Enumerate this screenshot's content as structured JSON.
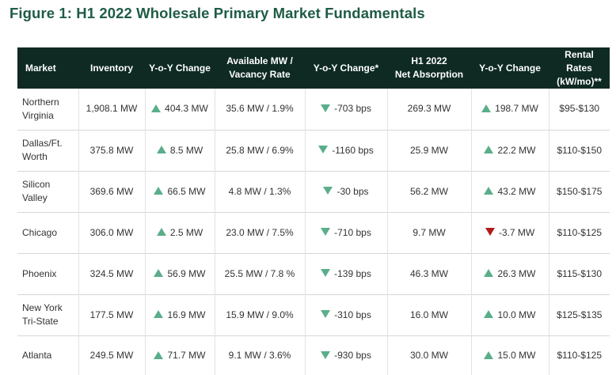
{
  "title": "Figure 1: H1 2022 Wholesale Primary Market Fundamentals",
  "headers": {
    "market": "Market",
    "inventory": "Inventory",
    "yoy1": "Y-o-Y Change",
    "avail_l1": "Available MW /",
    "avail_l2": "Vacancy Rate",
    "yoy2": "Y-o-Y Change*",
    "abs_l1": "H1 2022",
    "abs_l2": "Net Absorption",
    "yoy3": "Y-o-Y Change",
    "rent_l1": "Rental Rates",
    "rent_l2": "(kW/mo)**"
  },
  "colors": {
    "title": "#1f5c45",
    "header_bg": "#0e2a23",
    "arrow_green": "#5aae8a",
    "arrow_red": "#b01c1c"
  },
  "rows": [
    {
      "m1": "Northern",
      "m2": "Virginia",
      "inventory": "1,908.1 MW",
      "inv_chg": "404.3 MW",
      "avail": "35.6 MW / 1.9%",
      "vac_chg": "-703 bps",
      "absorption": "269.3 MW",
      "abs_chg": "198.7 MW",
      "rent": "$95-$130"
    },
    {
      "m1": "Dallas/Ft.",
      "m2": "Worth",
      "inventory": "375.8 MW",
      "inv_chg": "8.5 MW",
      "avail": "25.8 MW / 6.9%",
      "vac_chg": "-1160 bps",
      "absorption": "25.9 MW",
      "abs_chg": "22.2 MW",
      "rent": "$110-$150"
    },
    {
      "m1": "Silicon",
      "m2": "Valley",
      "inventory": "369.6 MW",
      "inv_chg": "66.5 MW",
      "avail": "4.8 MW / 1.3%",
      "vac_chg": "-30 bps",
      "absorption": "56.2 MW",
      "abs_chg": "43.2 MW",
      "rent": "$150-$175"
    },
    {
      "m1": "Chicago",
      "m2": "",
      "inventory": "306.0 MW",
      "inv_chg": "2.5 MW",
      "avail": "23.0 MW / 7.5%",
      "vac_chg": "-710 bps",
      "absorption": "9.7 MW",
      "abs_chg": "-3.7 MW",
      "rent": "$110-$125"
    },
    {
      "m1": "Phoenix",
      "m2": "",
      "inventory": "324.5 MW",
      "inv_chg": "56.9 MW",
      "avail": "25.5 MW / 7.8 %",
      "vac_chg": "-139 bps",
      "absorption": "46.3 MW",
      "abs_chg": "26.3 MW",
      "rent": "$115-$130"
    },
    {
      "m1": "New York",
      "m2": "Tri-State",
      "inventory": "177.5 MW",
      "inv_chg": "16.9 MW",
      "avail": "15.9 MW / 9.0%",
      "vac_chg": "-310 bps",
      "absorption": "16.0 MW",
      "abs_chg": "10.0 MW",
      "rent": "$125-$135"
    },
    {
      "m1": "Atlanta",
      "m2": "",
      "inventory": "249.5 MW",
      "inv_chg": "71.7 MW",
      "avail": "9.1 MW / 3.6%",
      "vac_chg": "-930 bps",
      "absorption": "30.0 MW",
      "abs_chg": "15.0 MW",
      "rent": "$110-$125"
    }
  ]
}
